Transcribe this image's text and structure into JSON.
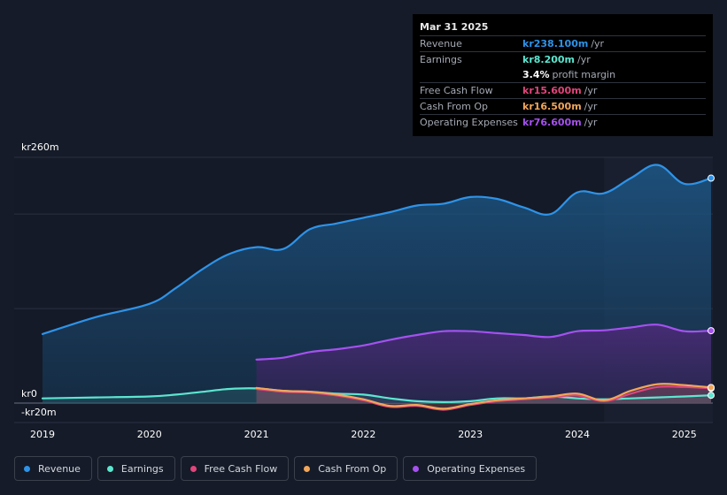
{
  "tooltip": {
    "date": "Mar 31 2025",
    "revenue": {
      "label": "Revenue",
      "value": "kr238.100m",
      "unit": "/yr"
    },
    "earnings": {
      "label": "Earnings",
      "value": "kr8.200m",
      "unit": "/yr"
    },
    "margin": {
      "value": "3.4%",
      "unit": "profit margin"
    },
    "fcf": {
      "label": "Free Cash Flow",
      "value": "kr15.600m",
      "unit": "/yr"
    },
    "cfo": {
      "label": "Cash From Op",
      "value": "kr16.500m",
      "unit": "/yr"
    },
    "opex": {
      "label": "Operating Expenses",
      "value": "kr76.600m",
      "unit": "/yr"
    }
  },
  "legend": [
    {
      "label": "Revenue",
      "color": "#2e93e8"
    },
    {
      "label": "Earnings",
      "color": "#5ce6d0"
    },
    {
      "label": "Free Cash Flow",
      "color": "#e0457b"
    },
    {
      "label": "Cash From Op",
      "color": "#f2a65a"
    },
    {
      "label": "Operating Expenses",
      "color": "#a551f0"
    }
  ],
  "chart_data": {
    "type": "area",
    "x_ticks": [
      "2019",
      "2020",
      "2021",
      "2022",
      "2023",
      "2024",
      "2025"
    ],
    "y_tick_labels": [
      "kr260m",
      "kr0",
      "-kr20m"
    ],
    "ylim": [
      -20,
      260
    ],
    "x_range": [
      2019.0,
      2025.25
    ],
    "series": [
      {
        "name": "Revenue",
        "color": "#2e93e8",
        "x": [
          2019.0,
          2019.5,
          2020.0,
          2020.25,
          2020.5,
          2020.75,
          2021.0,
          2021.25,
          2021.5,
          2021.75,
          2022.0,
          2022.25,
          2022.5,
          2022.75,
          2023.0,
          2023.25,
          2023.5,
          2023.75,
          2024.0,
          2024.25,
          2024.5,
          2024.75,
          2025.0,
          2025.25
        ],
        "values": [
          73,
          91,
          105,
          122,
          142,
          158,
          165,
          163,
          184,
          190,
          196,
          202,
          209,
          211,
          218,
          216,
          207,
          200,
          223,
          222,
          238,
          252,
          232,
          238
        ]
      },
      {
        "name": "Operating Expenses",
        "color": "#a551f0",
        "x": [
          2021.0,
          2021.25,
          2021.5,
          2021.75,
          2022.0,
          2022.25,
          2022.5,
          2022.75,
          2023.0,
          2023.25,
          2023.5,
          2023.75,
          2024.0,
          2024.25,
          2024.5,
          2024.75,
          2025.0,
          2025.25
        ],
        "values": [
          46,
          48,
          54,
          57,
          61,
          67,
          72,
          76,
          76,
          74,
          72,
          70,
          76,
          77,
          80,
          83,
          76,
          76.6
        ]
      },
      {
        "name": "Earnings",
        "color": "#5ce6d0",
        "x": [
          2019.0,
          2019.5,
          2020.0,
          2020.25,
          2020.5,
          2020.75,
          2021.0,
          2021.25,
          2021.5,
          2021.75,
          2022.0,
          2022.25,
          2022.5,
          2022.75,
          2023.0,
          2023.25,
          2023.5,
          2023.75,
          2024.0,
          2024.25,
          2024.5,
          2024.75,
          2025.0,
          2025.25
        ],
        "values": [
          5,
          6,
          7,
          9,
          12,
          15,
          15.5,
          13,
          12,
          10,
          9,
          5,
          2,
          1,
          2,
          5,
          5,
          7,
          5,
          4,
          5,
          6,
          7,
          8.2
        ]
      },
      {
        "name": "Free Cash Flow",
        "color": "#e0457b",
        "x": [
          2021.0,
          2021.25,
          2021.5,
          2021.75,
          2022.0,
          2022.25,
          2022.5,
          2022.75,
          2023.0,
          2023.25,
          2023.5,
          2023.75,
          2024.0,
          2024.25,
          2024.5,
          2024.75,
          2025.0,
          2025.25
        ],
        "values": [
          15,
          12,
          11,
          8,
          3,
          -4,
          -3,
          -7,
          -2,
          2,
          4,
          6,
          8,
          2,
          10,
          17,
          17,
          15.6
        ]
      },
      {
        "name": "Cash From Op",
        "color": "#f2a65a",
        "x": [
          2021.0,
          2021.25,
          2021.5,
          2021.75,
          2022.0,
          2022.25,
          2022.5,
          2022.75,
          2023.0,
          2023.25,
          2023.5,
          2023.75,
          2024.0,
          2024.25,
          2024.5,
          2024.75,
          2025.0,
          2025.25
        ],
        "values": [
          16,
          13,
          12,
          9,
          4,
          -3,
          -2,
          -6,
          -1,
          3,
          5,
          7,
          10,
          3,
          13,
          20,
          19,
          16.5
        ]
      }
    ],
    "highlight_from": 2024.25
  }
}
